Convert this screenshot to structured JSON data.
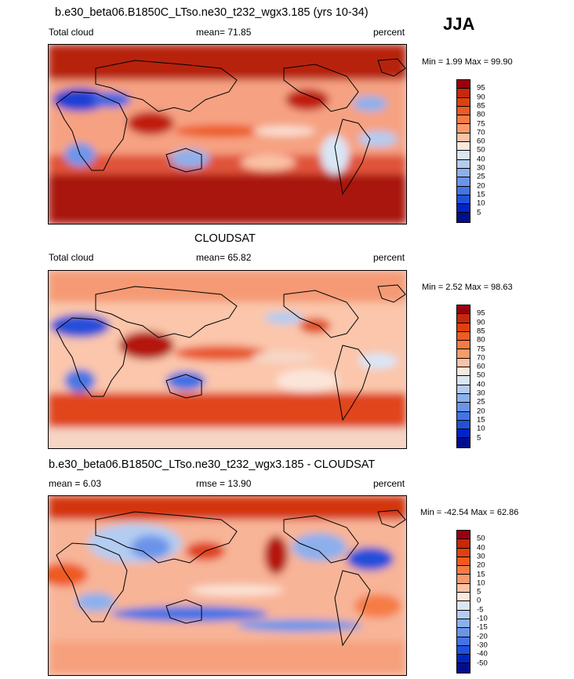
{
  "season": "JJA",
  "panels": [
    {
      "title": "b.e30_beta06.B1850C_LTso.ne30_t232_wgx3.185 (yrs 10-34)",
      "left_label": "Total cloud",
      "center_label": "mean=  71.85",
      "right_label": "percent",
      "minmax": "Min =   1.99 Max =  99.90",
      "levels": [
        "95",
        "90",
        "85",
        "80",
        "75",
        "70",
        "60",
        "50",
        "40",
        "30",
        "25",
        "20",
        "15",
        "10",
        "5"
      ],
      "colors": [
        "#99000d",
        "#c62809",
        "#e0400e",
        "#ee5a22",
        "#f57b45",
        "#f99a6c",
        "#fbc2a6",
        "#fbe8dd",
        "#d9e6f6",
        "#b3ccf1",
        "#8cb0ec",
        "#6a94ea",
        "#4473e6",
        "#2150d9",
        "#0024c4",
        "#000e8c"
      ]
    },
    {
      "title": "CLOUDSAT",
      "left_label": "Total cloud",
      "center_label": "mean=  65.82",
      "right_label": "percent",
      "minmax": "Min =   2.52 Max =  98.63",
      "levels": [
        "95",
        "90",
        "85",
        "80",
        "75",
        "70",
        "60",
        "50",
        "40",
        "30",
        "25",
        "20",
        "15",
        "10",
        "5"
      ],
      "colors": [
        "#99000d",
        "#c62809",
        "#e0400e",
        "#ee5a22",
        "#f57b45",
        "#f99a6c",
        "#fbc2a6",
        "#fbe8dd",
        "#d9e6f6",
        "#b3ccf1",
        "#8cb0ec",
        "#6a94ea",
        "#4473e6",
        "#2150d9",
        "#0024c4",
        "#000e8c"
      ]
    },
    {
      "title": "b.e30_beta06.B1850C_LTso.ne30_t232_wgx3.185 - CLOUDSAT",
      "left_label": "mean =   6.03",
      "center_label": "rmse =  13.90",
      "right_label": "percent",
      "minmax": "Min = -42.54 Max =  62.86",
      "levels": [
        "50",
        "40",
        "30",
        "20",
        "15",
        "10",
        "5",
        "0",
        "-5",
        "-10",
        "-15",
        "-20",
        "-30",
        "-40",
        "-50"
      ],
      "colors": [
        "#99000d",
        "#c62809",
        "#e0400e",
        "#ee5a22",
        "#f57b45",
        "#f99a6c",
        "#fbc2a6",
        "#fbe8dd",
        "#d9e6f6",
        "#b3ccf1",
        "#8cb0ec",
        "#6a94ea",
        "#4473e6",
        "#2150d9",
        "#0024c4",
        "#000e8c"
      ]
    }
  ]
}
